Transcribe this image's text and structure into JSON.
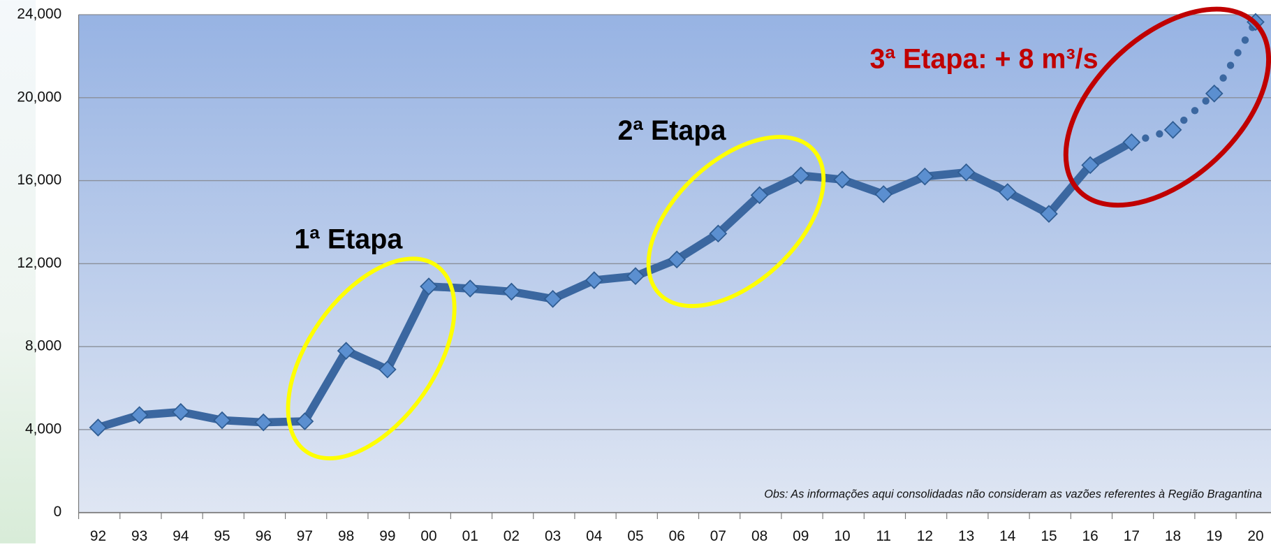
{
  "chart_data": {
    "type": "line",
    "categories": [
      "92",
      "93",
      "94",
      "95",
      "96",
      "97",
      "98",
      "99",
      "00",
      "01",
      "02",
      "03",
      "04",
      "05",
      "06",
      "07",
      "08",
      "09",
      "10",
      "11",
      "12",
      "13",
      "14",
      "15",
      "16",
      "17",
      "18",
      "19",
      "20"
    ],
    "series": [
      {
        "color": "#3b67a0",
        "line_style": "solid",
        "values": [
          4100,
          4700,
          4850,
          4450,
          4350,
          4400,
          7800,
          6900,
          10900,
          10800,
          10650,
          10300,
          11200,
          11400,
          12200,
          13450,
          15300,
          16250,
          16050,
          15350,
          16200,
          16400,
          15450,
          14400,
          16750,
          17850,
          null,
          null,
          null
        ]
      },
      {
        "color": "#3b67a0",
        "line_style": "dotted",
        "values": [
          null,
          null,
          null,
          null,
          null,
          null,
          null,
          null,
          null,
          null,
          null,
          null,
          null,
          null,
          null,
          null,
          null,
          null,
          null,
          null,
          null,
          null,
          null,
          null,
          null,
          null,
          18450,
          20200,
          23650
        ]
      }
    ],
    "ylim": [
      0,
      24000
    ],
    "yticks": [
      0,
      {
        "value": 4000,
        "label": "4,000"
      },
      {
        "value": 8000,
        "label": "8,000"
      },
      {
        "value": 12000,
        "label": "12,000"
      },
      {
        "value": 16000,
        "label": "16,000"
      },
      {
        "value": 20000,
        "label": "20,000"
      },
      {
        "value": 24000,
        "label": "24,000"
      }
    ],
    "grid": true,
    "annotations": [
      "1ª Etapa",
      "2ª Etapa",
      "3ª Etapa: + 8 m³/s"
    ],
    "note": "Obs: As informações aqui consolidadas não consideram as vazões referentes à Região Bragantina"
  }
}
